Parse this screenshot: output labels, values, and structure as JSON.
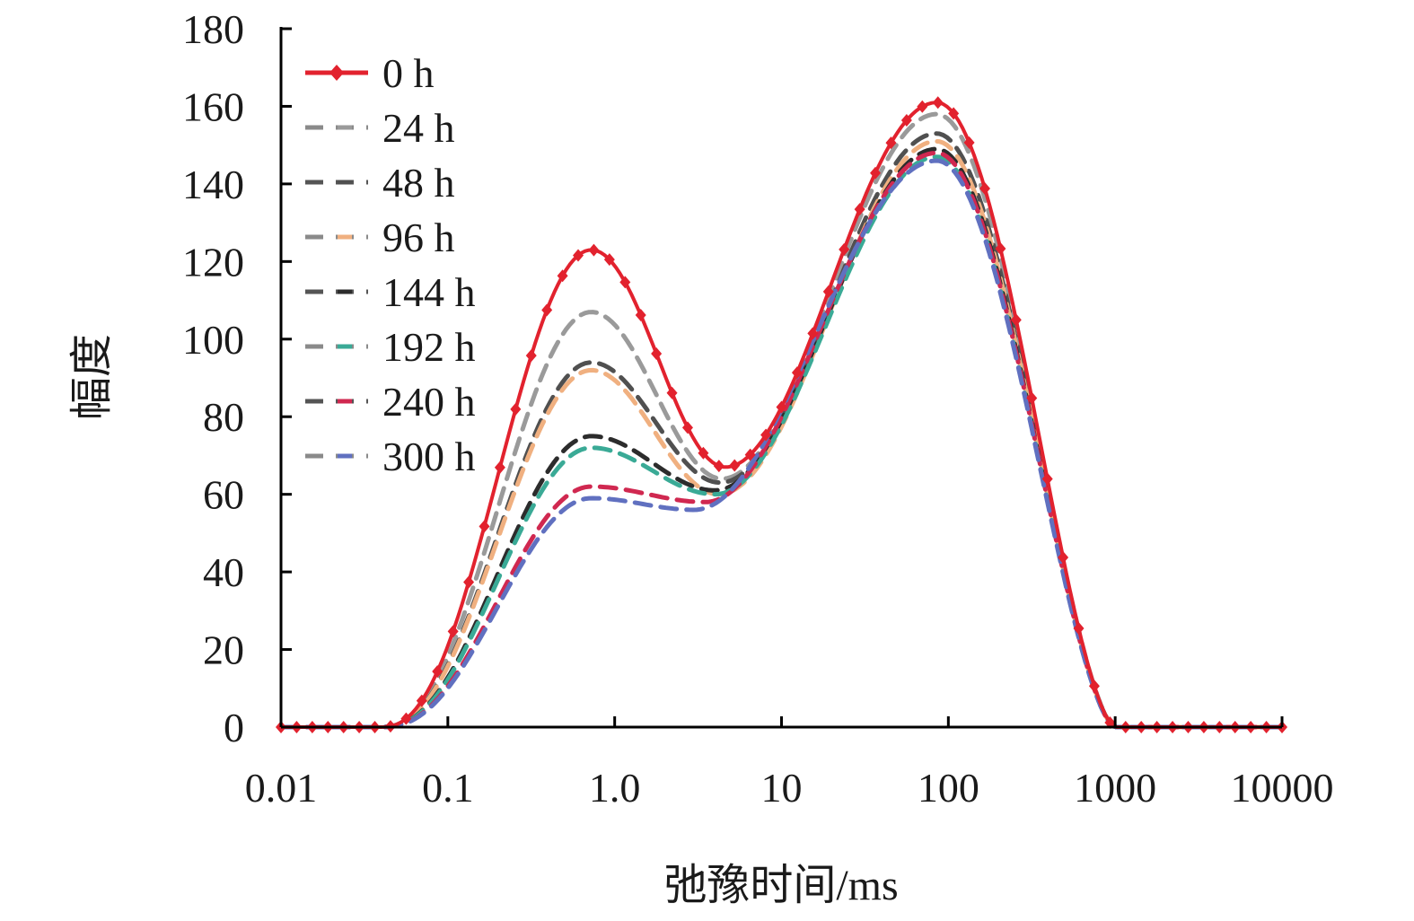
{
  "chart_data": {
    "type": "line",
    "xlabel": "弛豫时间/ms",
    "ylabel": "幅度",
    "x_scale": "log",
    "xlim": [
      0.01,
      10000
    ],
    "ylim": [
      0,
      180
    ],
    "x_ticks": [
      0.01,
      0.1,
      1.0,
      10,
      100,
      1000,
      10000
    ],
    "x_tick_labels": [
      "0.01",
      "0.1",
      "1.0",
      "10",
      "100",
      "1000",
      "10000"
    ],
    "y_ticks": [
      0,
      20,
      40,
      60,
      80,
      100,
      120,
      140,
      160,
      180
    ],
    "y_tick_labels": [
      "0",
      "20",
      "40",
      "60",
      "80",
      "100",
      "120",
      "140",
      "160",
      "180"
    ],
    "grid": false,
    "legend_position": "top-left",
    "series": [
      {
        "name": "0 h",
        "color": "#e2222e",
        "style": "solid-diamond",
        "peak1": 123,
        "valley": 67,
        "peak2": 161,
        "valley_x": 4.6
      },
      {
        "name": "24 h",
        "color": "#9a9a9a",
        "style": "dashed",
        "peak1": 107,
        "valley": 64,
        "peak2": 158,
        "valley_x": 4.4
      },
      {
        "name": "48 h",
        "color": "#505050",
        "style": "dashed",
        "peak1": 94,
        "valley": 63,
        "peak2": 153,
        "valley_x": 4.3
      },
      {
        "name": "96 h",
        "color": "#f0b080",
        "style": "dashed",
        "peak1": 92,
        "valley": 60,
        "peak2": 151,
        "valley_x": 4.2
      },
      {
        "name": "144 h",
        "color": "#2c2c2c",
        "style": "dashed",
        "peak1": 75,
        "valley": 61,
        "peak2": 149,
        "valley_x": 4.0
      },
      {
        "name": "192 h",
        "color": "#3aaa96",
        "style": "dashed",
        "peak1": 72,
        "valley": 60,
        "peak2": 147,
        "valley_x": 4.0
      },
      {
        "name": "240 h",
        "color": "#d02850",
        "style": "dashed",
        "peak1": 62,
        "valley": 58,
        "peak2": 148,
        "valley_x": 3.5
      },
      {
        "name": "300 h",
        "color": "#6070c0",
        "style": "dashed",
        "peak1": 59,
        "valley": 56,
        "peak2": 146,
        "valley_x": 3.0
      }
    ]
  }
}
